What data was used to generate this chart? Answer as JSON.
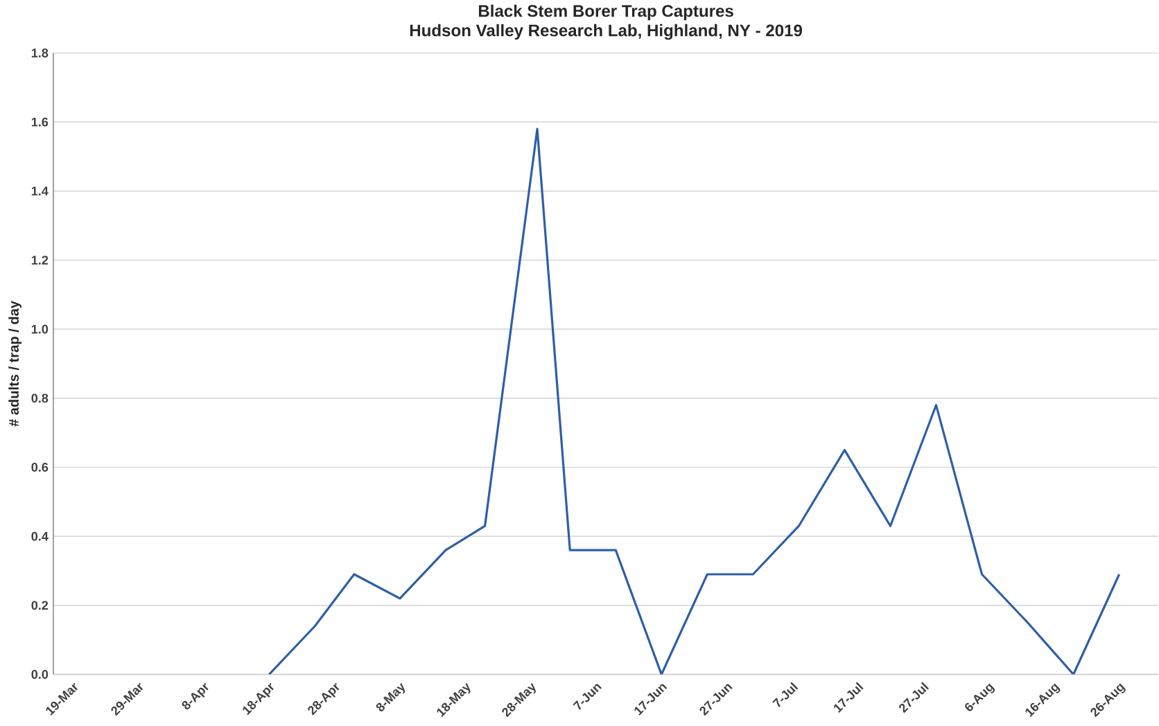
{
  "chart_data": {
    "type": "line",
    "title": "Black Stem Borer Trap Captures",
    "subtitle": "Hudson Valley Research Lab, Highland, NY - 2019",
    "ylabel": "# adults / trap / day",
    "x": [
      "2019-04-18",
      "2019-04-25",
      "2019-05-01",
      "2019-05-08",
      "2019-05-15",
      "2019-05-21",
      "2019-05-29",
      "2019-06-03",
      "2019-06-10",
      "2019-06-17",
      "2019-06-24",
      "2019-07-01",
      "2019-07-08",
      "2019-07-15",
      "2019-07-22",
      "2019-07-29",
      "2019-08-05",
      "2019-08-12",
      "2019-08-19",
      "2019-08-26"
    ],
    "series": [
      {
        "color": "#2e5fa8",
        "values": [
          0,
          0.14,
          0.29,
          0.22,
          0.36,
          0.43,
          1.58,
          0.36,
          0.36,
          0,
          0.29,
          0.29,
          0.43,
          0.65,
          0.43,
          0.78,
          0.29,
          0.15,
          0,
          0.29
        ]
      }
    ],
    "xlim": [
      "2019-03-16",
      "2019-09-01"
    ],
    "xticks": [
      {
        "value": "2019-03-19",
        "label": "19-Mar"
      },
      {
        "value": "2019-03-29",
        "label": "29-Mar"
      },
      {
        "value": "2019-04-08",
        "label": "8-Apr"
      },
      {
        "value": "2019-04-18",
        "label": "18-Apr"
      },
      {
        "value": "2019-04-28",
        "label": "28-Apr"
      },
      {
        "value": "2019-05-08",
        "label": "8-May"
      },
      {
        "value": "2019-05-18",
        "label": "18-May"
      },
      {
        "value": "2019-05-28",
        "label": "28-May"
      },
      {
        "value": "2019-06-07",
        "label": "7-Jun"
      },
      {
        "value": "2019-06-17",
        "label": "17-Jun"
      },
      {
        "value": "2019-06-27",
        "label": "27-Jun"
      },
      {
        "value": "2019-07-07",
        "label": "7-Jul"
      },
      {
        "value": "2019-07-17",
        "label": "17-Jul"
      },
      {
        "value": "2019-07-27",
        "label": "27-Jul"
      },
      {
        "value": "2019-08-06",
        "label": "6-Aug"
      },
      {
        "value": "2019-08-16",
        "label": "16-Aug"
      },
      {
        "value": "2019-08-26",
        "label": "26-Aug"
      }
    ],
    "ylim": [
      0,
      1.8
    ],
    "yticks": [
      {
        "value": 0,
        "label": "0.0"
      },
      {
        "value": 0.2,
        "label": "0.2"
      },
      {
        "value": 0.4,
        "label": "0.4"
      },
      {
        "value": 0.6,
        "label": "0.6"
      },
      {
        "value": 0.8,
        "label": "0.8"
      },
      {
        "value": 1.0,
        "label": "1.0"
      },
      {
        "value": 1.2,
        "label": "1.2"
      },
      {
        "value": 1.4,
        "label": "1.4"
      },
      {
        "value": 1.6,
        "label": "1.6"
      },
      {
        "value": 1.8,
        "label": "1.8"
      }
    ],
    "grid": "y",
    "marker": "none",
    "line_style": "solid"
  }
}
